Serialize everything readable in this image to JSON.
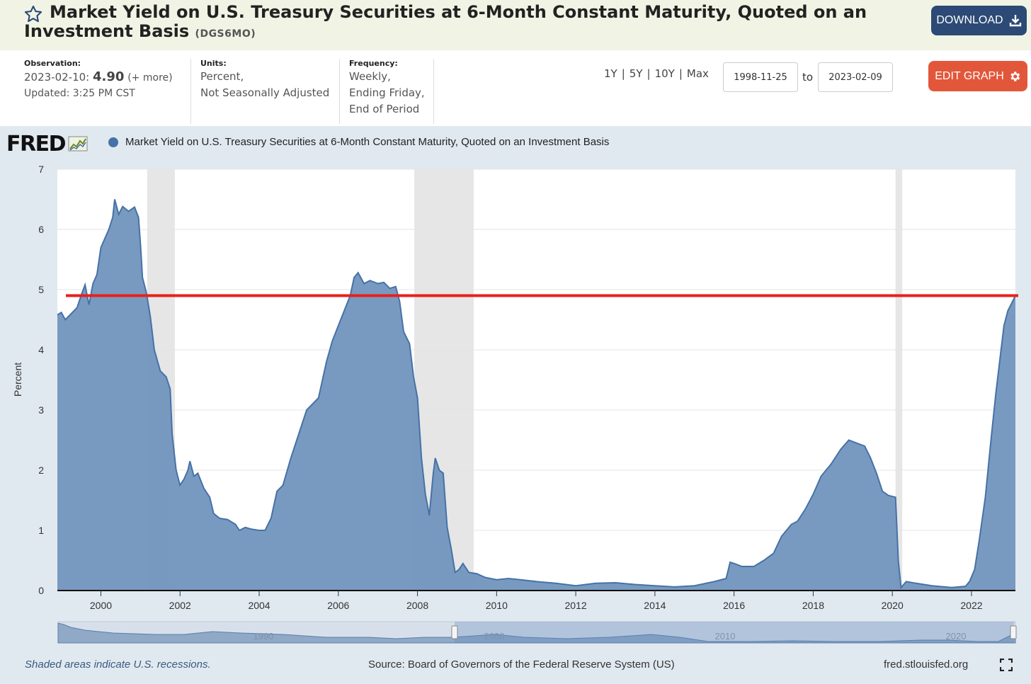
{
  "header": {
    "title": "Market Yield on U.S. Treasury Securities at 6-Month Constant Maturity, Quoted on an Investment Basis",
    "series_id": "(DGS6MO)",
    "download_label": "DOWNLOAD",
    "star_icon": "star-outline-icon",
    "download_icon": "download-icon"
  },
  "meta": {
    "observation_label": "Observation:",
    "observation_date": "2023-02-10:",
    "observation_value": "4.90",
    "observation_more": "(+ more)",
    "updated": "Updated: 3:25 PM CST",
    "units_label": "Units:",
    "units_line1": "Percent,",
    "units_line2": "Not Seasonally Adjusted",
    "frequency_label": "Frequency:",
    "frequency_line1": "Weekly,",
    "frequency_line2": "Ending Friday,",
    "frequency_line3": "End of Period"
  },
  "controls": {
    "range_1y": "1Y",
    "range_5y": "5Y",
    "range_10y": "10Y",
    "range_max": "Max",
    "start_date": "1998-11-25",
    "to_label": "to",
    "end_date": "2023-02-09",
    "edit_label": "EDIT GRAPH",
    "edit_icon": "gear-icon"
  },
  "colors": {
    "series": "#4572a7",
    "series_fill": "#7295bd",
    "recession": "#e6e6e6",
    "reference_line": "#e8201b",
    "panel_bg": "#e1e9f0",
    "download_btn": "#2c4a75",
    "edit_btn": "#e2573a"
  },
  "chart_data": {
    "type": "area",
    "logo_text": "FRED",
    "logo_icon": "fred-chart-icon",
    "legend": [
      "Market Yield on U.S. Treasury Securities at 6-Month Constant Maturity, Quoted on an Investment Basis"
    ],
    "ylabel": "Percent",
    "ylim": [
      0,
      7
    ],
    "y_ticks": [
      "0",
      "1",
      "2",
      "3",
      "4",
      "5",
      "6",
      "7"
    ],
    "xlim": [
      1998.9,
      2023.11
    ],
    "x_ticks": [
      "2000",
      "2002",
      "2004",
      "2006",
      "2008",
      "2010",
      "2012",
      "2014",
      "2016",
      "2018",
      "2020",
      "2022"
    ],
    "grid": true,
    "legend_placement": "top-left",
    "recessions": [
      [
        2001.17,
        2001.87
      ],
      [
        2007.92,
        2009.42
      ],
      [
        2020.08,
        2020.25
      ]
    ],
    "reference_line": {
      "value": 4.9,
      "color": "#e8201b"
    },
    "points": [
      [
        1998.9,
        4.58
      ],
      [
        1999.0,
        4.62
      ],
      [
        1999.1,
        4.5
      ],
      [
        1999.25,
        4.6
      ],
      [
        1999.4,
        4.7
      ],
      [
        1999.5,
        4.9
      ],
      [
        1999.6,
        5.08
      ],
      [
        1999.7,
        4.75
      ],
      [
        1999.8,
        5.1
      ],
      [
        1999.9,
        5.25
      ],
      [
        2000.0,
        5.7
      ],
      [
        2000.1,
        5.85
      ],
      [
        2000.2,
        6.0
      ],
      [
        2000.3,
        6.2
      ],
      [
        2000.35,
        6.5
      ],
      [
        2000.45,
        6.25
      ],
      [
        2000.55,
        6.38
      ],
      [
        2000.7,
        6.3
      ],
      [
        2000.85,
        6.37
      ],
      [
        2000.95,
        6.2
      ],
      [
        2001.0,
        5.75
      ],
      [
        2001.05,
        5.2
      ],
      [
        2001.15,
        4.95
      ],
      [
        2001.25,
        4.55
      ],
      [
        2001.35,
        4.0
      ],
      [
        2001.5,
        3.65
      ],
      [
        2001.65,
        3.55
      ],
      [
        2001.75,
        3.35
      ],
      [
        2001.8,
        2.6
      ],
      [
        2001.9,
        2.0
      ],
      [
        2002.0,
        1.75
      ],
      [
        2002.1,
        1.85
      ],
      [
        2002.2,
        2.0
      ],
      [
        2002.25,
        2.15
      ],
      [
        2002.35,
        1.9
      ],
      [
        2002.45,
        1.95
      ],
      [
        2002.6,
        1.7
      ],
      [
        2002.75,
        1.55
      ],
      [
        2002.85,
        1.28
      ],
      [
        2003.0,
        1.2
      ],
      [
        2003.2,
        1.18
      ],
      [
        2003.4,
        1.1
      ],
      [
        2003.5,
        1.0
      ],
      [
        2003.65,
        1.05
      ],
      [
        2003.8,
        1.02
      ],
      [
        2004.0,
        1.0
      ],
      [
        2004.15,
        1.0
      ],
      [
        2004.3,
        1.2
      ],
      [
        2004.45,
        1.65
      ],
      [
        2004.6,
        1.75
      ],
      [
        2004.8,
        2.2
      ],
      [
        2005.0,
        2.6
      ],
      [
        2005.2,
        3.0
      ],
      [
        2005.35,
        3.1
      ],
      [
        2005.5,
        3.2
      ],
      [
        2005.7,
        3.8
      ],
      [
        2005.85,
        4.15
      ],
      [
        2006.0,
        4.4
      ],
      [
        2006.15,
        4.65
      ],
      [
        2006.3,
        4.9
      ],
      [
        2006.4,
        5.2
      ],
      [
        2006.5,
        5.28
      ],
      [
        2006.65,
        5.1
      ],
      [
        2006.8,
        5.15
      ],
      [
        2007.0,
        5.1
      ],
      [
        2007.15,
        5.12
      ],
      [
        2007.3,
        5.02
      ],
      [
        2007.45,
        5.05
      ],
      [
        2007.55,
        4.8
      ],
      [
        2007.65,
        4.3
      ],
      [
        2007.8,
        4.1
      ],
      [
        2007.9,
        3.55
      ],
      [
        2008.0,
        3.2
      ],
      [
        2008.1,
        2.2
      ],
      [
        2008.2,
        1.6
      ],
      [
        2008.3,
        1.25
      ],
      [
        2008.4,
        1.95
      ],
      [
        2008.45,
        2.2
      ],
      [
        2008.55,
        2.0
      ],
      [
        2008.65,
        1.95
      ],
      [
        2008.75,
        1.05
      ],
      [
        2008.85,
        0.7
      ],
      [
        2008.95,
        0.3
      ],
      [
        2009.05,
        0.35
      ],
      [
        2009.15,
        0.45
      ],
      [
        2009.3,
        0.3
      ],
      [
        2009.5,
        0.28
      ],
      [
        2009.7,
        0.22
      ],
      [
        2010.0,
        0.18
      ],
      [
        2010.3,
        0.2
      ],
      [
        2010.6,
        0.18
      ],
      [
        2011.0,
        0.15
      ],
      [
        2011.5,
        0.12
      ],
      [
        2012.0,
        0.08
      ],
      [
        2012.5,
        0.12
      ],
      [
        2013.0,
        0.13
      ],
      [
        2013.5,
        0.1
      ],
      [
        2014.0,
        0.08
      ],
      [
        2014.5,
        0.06
      ],
      [
        2015.0,
        0.08
      ],
      [
        2015.5,
        0.15
      ],
      [
        2015.8,
        0.2
      ],
      [
        2015.9,
        0.47
      ],
      [
        2016.0,
        0.45
      ],
      [
        2016.2,
        0.4
      ],
      [
        2016.5,
        0.4
      ],
      [
        2016.75,
        0.5
      ],
      [
        2017.0,
        0.62
      ],
      [
        2017.2,
        0.9
      ],
      [
        2017.45,
        1.1
      ],
      [
        2017.6,
        1.15
      ],
      [
        2017.8,
        1.35
      ],
      [
        2018.0,
        1.6
      ],
      [
        2018.2,
        1.9
      ],
      [
        2018.45,
        2.1
      ],
      [
        2018.7,
        2.35
      ],
      [
        2018.9,
        2.5
      ],
      [
        2019.1,
        2.45
      ],
      [
        2019.3,
        2.4
      ],
      [
        2019.45,
        2.2
      ],
      [
        2019.6,
        1.95
      ],
      [
        2019.75,
        1.65
      ],
      [
        2019.9,
        1.58
      ],
      [
        2020.08,
        1.55
      ],
      [
        2020.15,
        0.5
      ],
      [
        2020.22,
        0.05
      ],
      [
        2020.35,
        0.15
      ],
      [
        2020.6,
        0.12
      ],
      [
        2021.0,
        0.08
      ],
      [
        2021.5,
        0.05
      ],
      [
        2021.85,
        0.07
      ],
      [
        2021.95,
        0.15
      ],
      [
        2022.08,
        0.35
      ],
      [
        2022.2,
        0.85
      ],
      [
        2022.35,
        1.55
      ],
      [
        2022.5,
        2.55
      ],
      [
        2022.62,
        3.3
      ],
      [
        2022.72,
        3.85
      ],
      [
        2022.82,
        4.4
      ],
      [
        2022.92,
        4.65
      ],
      [
        2023.02,
        4.78
      ],
      [
        2023.11,
        4.9
      ]
    ]
  },
  "navigator": {
    "labels": [
      "1990",
      "2000",
      "2010",
      "2020"
    ]
  },
  "footer": {
    "recession_note": "Shaded areas indicate U.S. recessions.",
    "source": "Source: Board of Governors of the Federal Reserve System (US)",
    "url": "fred.stlouisfed.org",
    "fullscreen_icon": "fullscreen-icon"
  }
}
